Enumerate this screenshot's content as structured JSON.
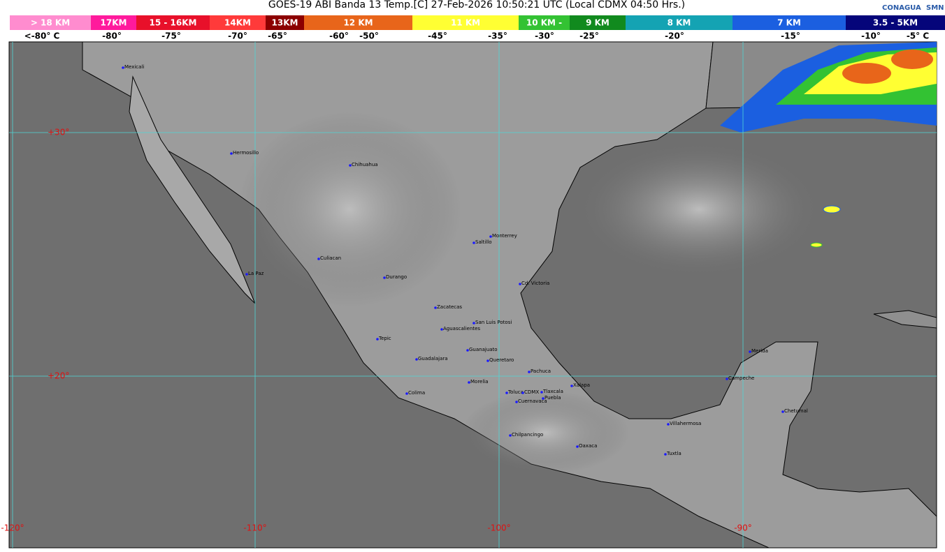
{
  "header": {
    "title": "GOES-19 ABI Banda 13 Temp.[C] 27-Feb-2026 10:50:21 UTC (Local CDMX  04:50 Hrs.)",
    "logos": [
      "CONAGUA",
      "SMN"
    ]
  },
  "legend": {
    "segments": [
      {
        "label": "> 18 KM",
        "color": "#ff8ccf"
      },
      {
        "label": "17KM",
        "color": "#ff1a9c"
      },
      {
        "label": "15 - 16KM",
        "color": "#e8102a"
      },
      {
        "label": "14KM",
        "color": "#ff3a3a"
      },
      {
        "label": "13KM",
        "color": "#8c0000"
      },
      {
        "label": "12 KM",
        "color": "#e8651a"
      },
      {
        "label": "11 KM",
        "color": "#ffff33"
      },
      {
        "label": "10 KM -",
        "color": "#33c233"
      },
      {
        "label": "9 KM",
        "color": "#118a1e"
      },
      {
        "label": "8 KM",
        "color": "#14a3b3"
      },
      {
        "label": "7 KM",
        "color": "#1b5fe0"
      },
      {
        "label": "3.5 - 5KM",
        "color": "#05057a"
      }
    ],
    "temperatures": [
      "<-80° C",
      "-80°",
      "-75°",
      "-70°",
      "-65°",
      "-60°",
      "-50°",
      "-45°",
      "-35°",
      "-30°",
      "-25°",
      "-20°",
      "-15°",
      "-10°",
      "-5° C"
    ]
  },
  "map": {
    "latitudes": [
      "+30°",
      "+20°"
    ],
    "longitudes": [
      "-120°",
      "-110°",
      "-100°",
      "-90°"
    ],
    "cities": [
      "Mexicali",
      "Hermosillo",
      "Chihuahua",
      "Monterrey",
      "Saltillo",
      "Culiacan",
      "La Paz",
      "Durango",
      "Cd. Victoria",
      "Zacatecas",
      "San Luis Potosi",
      "Aguascalientes",
      "Tepic",
      "Guanajuato",
      "Merida",
      "Guadalajara",
      "Queretaro",
      "Pachuca",
      "Campeche",
      "Morelia",
      "Xalapa",
      "Toluca",
      "CDMX",
      "Tlaxcala",
      "Colima",
      "Puebla",
      "Cuernavaca",
      "Chetumal",
      "Villahermosa",
      "Chilpancingo",
      "Oaxaca",
      "Tuxtla"
    ]
  }
}
